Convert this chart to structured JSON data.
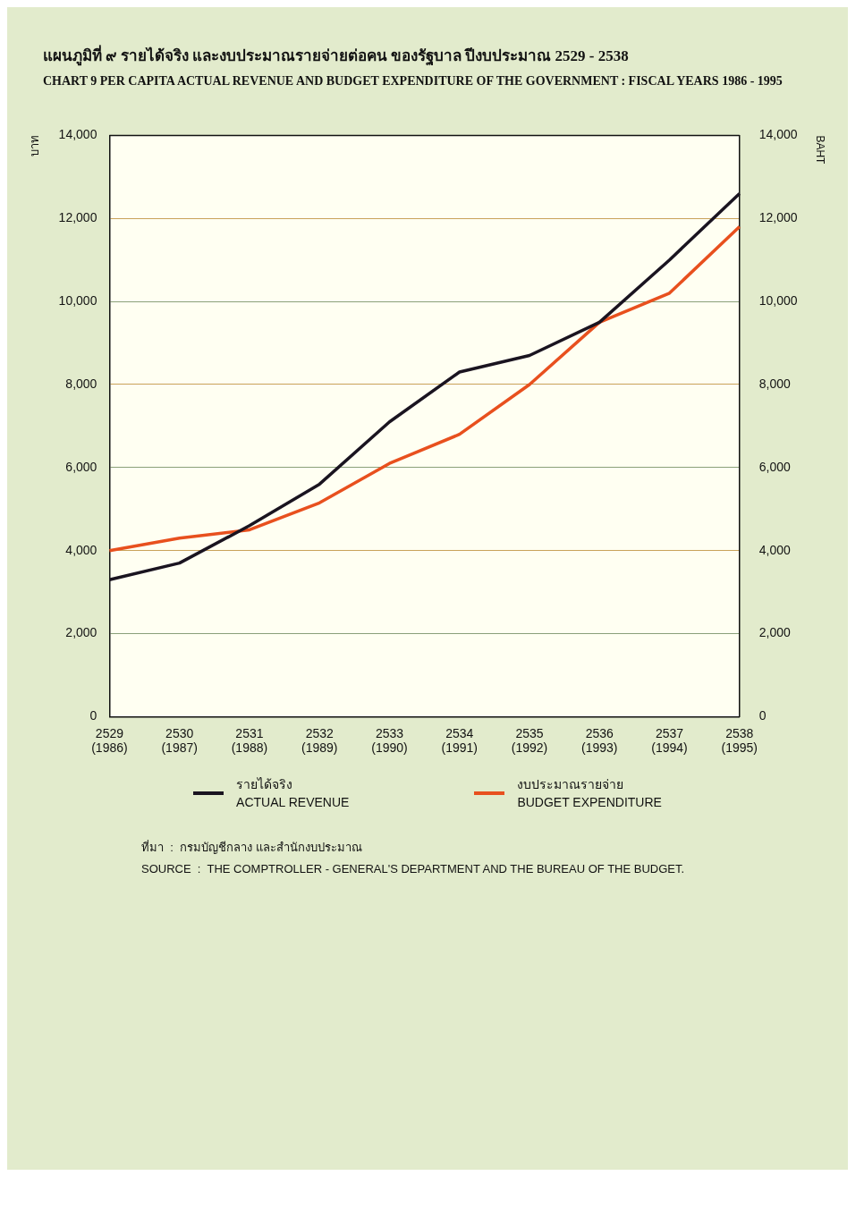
{
  "chart_data": {
    "type": "line",
    "title": "แผนภูมิที่ ๙   รายได้จริง และงบประมาณรายจ่ายต่อคน ของรัฐบาล ปีงบประมาณ 2529 - 2538",
    "subtitle": "CHART 9   PER CAPITA ACTUAL REVENUE AND BUDGET EXPENDITURE OF THE GOVERNMENT : FISCAL YEARS 1986 - 1995",
    "ylabel": "บาท",
    "y2label": "BAHT",
    "categories": [
      "2529 (1986)",
      "2530 (1987)",
      "2531 (1988)",
      "2532 (1989)",
      "2533 (1990)",
      "2534 (1991)",
      "2535 (1992)",
      "2536 (1993)",
      "2537 (1994)",
      "2538 (1995)"
    ],
    "series": [
      {
        "name": "รายได้จริง\nACTUAL REVENUE",
        "color": "#1a1420",
        "values": [
          3300,
          3700,
          4600,
          5600,
          7100,
          8300,
          8700,
          9500,
          11000,
          12600
        ]
      },
      {
        "name": "งบประมาณรายจ่าย\nBUDGET EXPENDITURE",
        "color": "#e8501e",
        "values": [
          4000,
          4300,
          4500,
          5150,
          6100,
          6800,
          8000,
          9500,
          10200,
          11800
        ]
      }
    ],
    "ylim": [
      0,
      14000
    ],
    "yticks": [
      {
        "value": 0,
        "label": "0"
      },
      {
        "value": 2000,
        "label": "2,000"
      },
      {
        "value": 4000,
        "label": "4,000"
      },
      {
        "value": 6000,
        "label": "6,000"
      },
      {
        "value": 8000,
        "label": "8,000"
      },
      {
        "value": 10000,
        "label": "10,000"
      },
      {
        "value": 12000,
        "label": "12,000"
      },
      {
        "value": 14000,
        "label": "14,000"
      }
    ],
    "y2lim": [
      0,
      14000
    ],
    "y2ticks": [
      {
        "value": 0,
        "label": "0"
      },
      {
        "value": 2000,
        "label": "2,000"
      },
      {
        "value": 4000,
        "label": "4,000"
      },
      {
        "value": 6000,
        "label": "6,000"
      },
      {
        "value": 8000,
        "label": "8,000"
      },
      {
        "value": 10000,
        "label": "10,000"
      },
      {
        "value": 12000,
        "label": "12,000"
      },
      {
        "value": 14000,
        "label": "14,000"
      }
    ],
    "grid": "y",
    "legend": "bottom",
    "marker": "none",
    "line_style": "solid",
    "annotations": [
      "ที่มา  :  กรมบัญชีกลาง และสำนักงบประมาณ",
      "SOURCE  :  THE COMPTROLLER - GENERAL'S DEPARTMENT AND THE BUREAU OF THE BUDGET."
    ]
  }
}
